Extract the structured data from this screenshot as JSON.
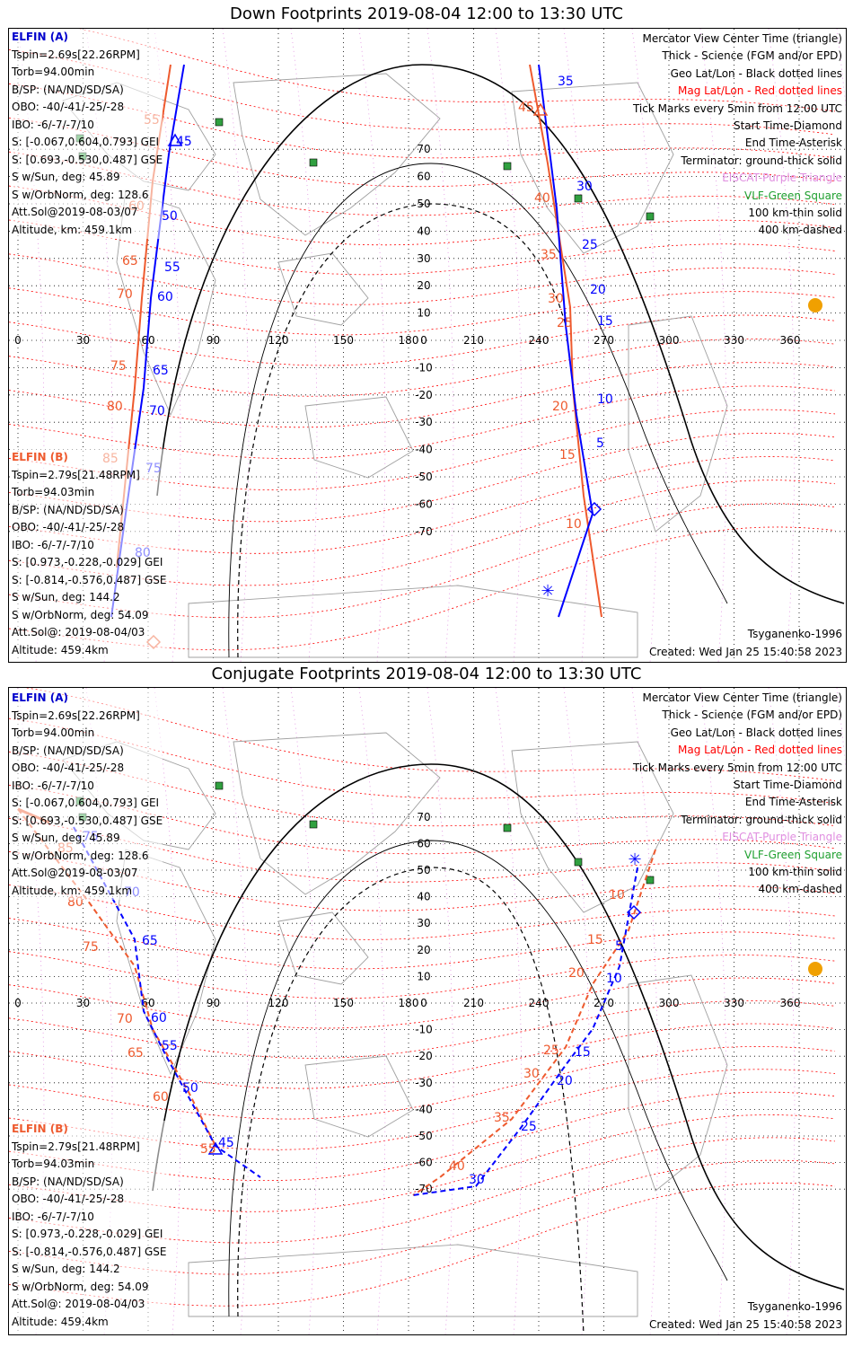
{
  "panels": [
    {
      "title": "Down Footprints 2019-08-04 12:00 to 13:30 UTC",
      "kind": "down",
      "lon_ticks": [
        "0",
        "30",
        "60",
        "90",
        "120",
        "150",
        "180",
        "210",
        "240",
        "270",
        "300",
        "330",
        "360"
      ],
      "lat_ticks": [
        "70",
        "60",
        "50",
        "40",
        "30",
        "20",
        "10",
        "0",
        "-10",
        "-20",
        "-30",
        "-40",
        "-50",
        "-60",
        "-70"
      ],
      "legend": [
        "Mercator View Center Time (triangle)",
        "Thick - Science (FGM and/or EPD)",
        "Geo Lat/Lon - Black dotted lines",
        "Mag Lat/Lon - Red dotted lines",
        "Tick Marks every 5min from 12:00 UTC",
        "Start Time-Diamond",
        "End Time-Asterisk",
        "Terminator: ground-thick solid",
        "EISCAT-Purple Triangle",
        "VLF-Green Square",
        "100 km-thin solid",
        "400 km-dashed"
      ],
      "elfin_a": {
        "header": "ELFIN (A)",
        "lines": [
          "Tspin=2.69s[22.26RPM]",
          "Torb=94.00min",
          "B/SP: (NA/ND/SD/SA)",
          "OBO: -40/-41/-25/-28",
          "IBO: -6/-7/-7/10",
          "S: [-0.067,0.604,0.793] GEI",
          "S: [0.693,-0.530,0.487] GSE",
          "S w/Sun, deg: 45.89",
          "S w/OrbNorm, deg: 128.6",
          "Att.Sol@2019-08-03/07",
          "Altitude, km: 459.1km"
        ]
      },
      "elfin_b": {
        "header": "ELFIN (B)",
        "lines": [
          "Tspin=2.79s[21.48RPM]",
          "Torb=94.03min",
          "B/SP: (NA/ND/SD/SA)",
          "OBO: -40/-41/-25/-28",
          "IBO: -6/-7/-7/10",
          "S: [0.973,-0.228,-0.029] GEI",
          "S: [-0.814,-0.576,0.487] GSE",
          "S w/Sun, deg: 144.2",
          "S w/OrbNorm, deg: 54.09",
          "Att.Sol@: 2019-08-04/03",
          "Altitude: 459.4km"
        ]
      },
      "model": "Tsyganenko-1996",
      "created": "Created: Wed Jan 25 15:40:58 2023",
      "track_labels_blue": [
        "45",
        "50",
        "55",
        "60",
        "65",
        "70",
        "75",
        "80",
        "35",
        "30",
        "25",
        "20",
        "15",
        "10",
        "5"
      ],
      "track_labels_red": [
        "55",
        "60",
        "65",
        "70",
        "75",
        "80",
        "85",
        "45",
        "40",
        "35",
        "30",
        "25",
        "20",
        "15",
        "10"
      ]
    },
    {
      "title": "Conjugate Footprints 2019-08-04 12:00 to 13:30 UTC",
      "kind": "conj",
      "lon_ticks": [
        "0",
        "30",
        "60",
        "90",
        "120",
        "150",
        "180",
        "210",
        "240",
        "270",
        "300",
        "330",
        "360"
      ],
      "lat_ticks": [
        "70",
        "60",
        "50",
        "40",
        "30",
        "20",
        "10",
        "0",
        "-10",
        "-20",
        "-30",
        "-40",
        "-50",
        "-60",
        "-70"
      ],
      "legend": [
        "Mercator View Center Time (triangle)",
        "Thick - Science (FGM and/or EPD)",
        "Geo Lat/Lon - Black dotted lines",
        "Mag Lat/Lon - Red dotted lines",
        "Tick Marks every 5min from 12:00 UTC",
        "Start Time-Diamond",
        "End Time-Asterisk",
        "Terminator: ground-thick solid",
        "EISCAT-Purple Triangle",
        "VLF-Green Square",
        "100 km-thin solid",
        "400 km-dashed"
      ],
      "elfin_a": {
        "header": "ELFIN (A)",
        "lines": [
          "Tspin=2.69s[22.26RPM]",
          "Torb=94.00min",
          "B/SP: (NA/ND/SD/SA)",
          "OBO: -40/-41/-25/-28",
          "IBO: -6/-7/-7/10",
          "S: [-0.067,0.604,0.793] GEI",
          "S: [0.693,-0.530,0.487] GSE",
          "S w/Sun, deg: 45.89",
          "S w/OrbNorm, deg: 128.6",
          "Att.Sol@2019-08-03/07",
          "Altitude, km: 459.1km"
        ]
      },
      "elfin_b": {
        "header": "ELFIN (B)",
        "lines": [
          "Tspin=2.79s[21.48RPM]",
          "Torb=94.03min",
          "B/SP: (NA/ND/SD/SA)",
          "OBO: -40/-41/-25/-28",
          "IBO: -6/-7/-7/10",
          "S: [0.973,-0.228,-0.029] GEI",
          "S: [-0.814,-0.576,0.487] GSE",
          "S w/Sun, deg: 144.2",
          "S w/OrbNorm, deg: 54.09",
          "Att.Sol@: 2019-08-04/03",
          "Altitude: 459.4km"
        ]
      },
      "model": "Tsyganenko-1996",
      "created": "Created: Wed Jan 25 15:40:58 2023",
      "track_labels_blue": [
        "75",
        "70",
        "65",
        "60",
        "55",
        "50",
        "45",
        "5",
        "10",
        "15",
        "20",
        "25",
        "30"
      ],
      "track_labels_red": [
        "85",
        "80",
        "75",
        "70",
        "65",
        "60",
        "55",
        "10",
        "15",
        "20",
        "25",
        "30",
        "35",
        "40"
      ]
    }
  ],
  "colors": {
    "elfin_a": "#0000ff",
    "elfin_b": "#ee5a2e",
    "mag_grid": "#ff0000",
    "geo_grid": "#000000",
    "eiscat": "#e08ee0",
    "vlf": "#30a040",
    "sun": "#f0a000"
  }
}
